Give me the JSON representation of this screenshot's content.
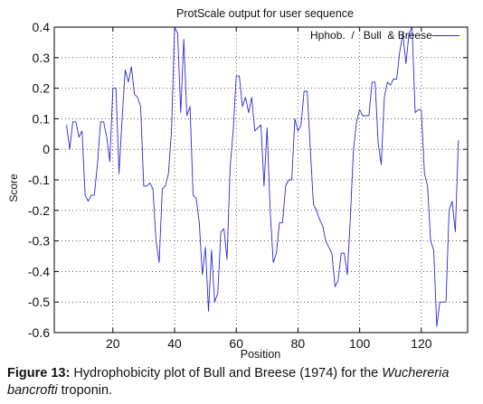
{
  "chart_data": {
    "type": "line",
    "title": "ProtScale  output  for  user sequence",
    "xlabel": "Position",
    "ylabel": "Score",
    "xlim": [
      1,
      135
    ],
    "ylim": [
      -0.6,
      0.4
    ],
    "xticks": [
      20,
      40,
      60,
      80,
      100,
      120
    ],
    "xtick_labels": [
      "20",
      "40",
      "60",
      "80",
      "100",
      "120"
    ],
    "yticks": [
      0.4,
      0.3,
      0.2,
      0.1,
      0,
      -0.1,
      -0.2,
      -0.3,
      -0.4,
      -0.5,
      -0.6
    ],
    "ytick_labels": [
      "0.4",
      "0.3",
      "0.2",
      "0.1",
      "0",
      "-0.1",
      "-0.2",
      "-0.3",
      "-0.4",
      "-0.5",
      "-0.6"
    ],
    "grid": true,
    "legend_position": "top-right",
    "series": [
      {
        "name": "Hphob.  /   Bull  & Breese",
        "color": "#2b2bd6",
        "x": [
          5,
          6,
          7,
          8,
          9,
          10,
          11,
          12,
          13,
          14,
          15,
          16,
          17,
          18,
          19,
          20,
          21,
          22,
          23,
          24,
          25,
          26,
          27,
          28,
          29,
          30,
          31,
          32,
          33,
          34,
          35,
          36,
          37,
          38,
          39,
          40,
          41,
          42,
          43,
          44,
          45,
          46,
          47,
          48,
          49,
          50,
          51,
          52,
          53,
          54,
          55,
          56,
          57,
          58,
          59,
          60,
          61,
          62,
          63,
          64,
          65,
          66,
          67,
          68,
          69,
          70,
          71,
          72,
          73,
          74,
          75,
          76,
          77,
          78,
          79,
          80,
          81,
          82,
          83,
          84,
          85,
          86,
          87,
          88,
          89,
          90,
          91,
          92,
          93,
          94,
          95,
          96,
          97,
          98,
          99,
          100,
          101,
          102,
          103,
          104,
          105,
          106,
          107,
          108,
          109,
          110,
          111,
          112,
          113,
          114,
          115,
          116,
          117,
          118,
          119,
          120,
          121,
          122,
          123,
          124,
          125,
          126,
          127,
          128,
          129,
          130,
          131,
          132
        ],
        "values": [
          0.08,
          0.0,
          0.09,
          0.09,
          0.04,
          0.06,
          -0.15,
          -0.17,
          -0.15,
          -0.15,
          -0.05,
          0.09,
          0.09,
          0.04,
          -0.04,
          0.2,
          0.2,
          -0.08,
          0.1,
          0.26,
          0.22,
          0.27,
          0.18,
          0.17,
          0.14,
          -0.12,
          -0.12,
          -0.11,
          -0.13,
          -0.3,
          -0.37,
          -0.13,
          -0.12,
          -0.08,
          0.06,
          0.4,
          0.38,
          0.12,
          0.36,
          0.11,
          0.14,
          -0.15,
          -0.16,
          -0.24,
          -0.41,
          -0.32,
          -0.53,
          -0.33,
          -0.5,
          -0.47,
          -0.27,
          -0.26,
          -0.36,
          -0.06,
          0.06,
          0.24,
          0.24,
          0.14,
          0.17,
          0.12,
          0.17,
          0.06,
          0.07,
          0.08,
          -0.12,
          0.07,
          -0.2,
          -0.37,
          -0.34,
          -0.24,
          -0.24,
          -0.12,
          -0.1,
          -0.1,
          0.1,
          0.06,
          0.08,
          0.19,
          0.19,
          0.0,
          -0.18,
          -0.2,
          -0.23,
          -0.25,
          -0.3,
          -0.32,
          -0.34,
          -0.45,
          -0.43,
          -0.34,
          -0.34,
          -0.41,
          -0.22,
          0.0,
          0.09,
          0.13,
          0.11,
          0.11,
          0.11,
          0.22,
          0.22,
          0.02,
          -0.05,
          0.17,
          0.22,
          0.21,
          0.23,
          0.23,
          0.32,
          0.38,
          0.28,
          0.38,
          0.4,
          0.12,
          0.13,
          0.13,
          -0.08,
          -0.12,
          -0.3,
          -0.33,
          -0.58,
          -0.5,
          -0.5,
          -0.5,
          -0.2,
          -0.17,
          -0.27,
          0.03
        ]
      }
    ]
  },
  "caption": {
    "label": "Figure 13:",
    "text_before": " Hydrophobicity plot of Bull and Breese (1974) for the ",
    "species": "Wuchereria bancrofti",
    "text_after": " troponin."
  }
}
